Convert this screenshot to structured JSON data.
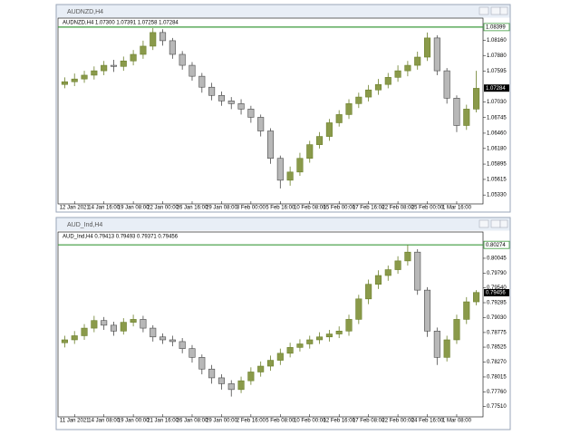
{
  "chart_data": [
    {
      "type": "candlestick",
      "window_title": "AUDNZD,H4",
      "info": "AUDNZD,H4 1.07300 1.07391 1.07258 1.07284",
      "categories": [
        null,
        "12 Jan 2021",
        null,
        null,
        "14 Jan 16:00",
        null,
        null,
        "19 Jan 08:00",
        null,
        null,
        "22 Jan 00:00",
        null,
        null,
        "26 Jan 16:00",
        null,
        null,
        "29 Jan 08:00",
        null,
        null,
        "3 Feb 00:00",
        null,
        null,
        "5 Feb 16:00",
        null,
        null,
        "10 Feb 08:00",
        null,
        null,
        "15 Feb 00:00",
        null,
        null,
        "17 Feb 16:00",
        null,
        null,
        "22 Feb 08:00",
        null,
        null,
        "25 Feb 00:00",
        null,
        null,
        "1 Mar 16:00",
        null,
        null
      ],
      "open": [
        1.0735,
        1.074,
        1.0745,
        1.0752,
        1.076,
        1.077,
        1.0768,
        1.0778,
        1.079,
        1.0805,
        1.083,
        1.0815,
        1.079,
        1.077,
        1.075,
        1.073,
        1.0715,
        1.0705,
        1.07,
        1.069,
        1.0675,
        1.065,
        1.06,
        1.056,
        1.0575,
        1.06,
        1.0625,
        1.064,
        1.0665,
        1.068,
        1.07,
        1.0712,
        1.0725,
        1.0735,
        1.0748,
        1.076,
        1.077,
        1.0785,
        1.082,
        1.076,
        1.071,
        1.066,
        1.069
      ],
      "high": [
        1.0748,
        1.0755,
        1.076,
        1.0768,
        1.0778,
        1.078,
        1.0786,
        1.0798,
        1.0815,
        1.0838,
        1.0836,
        1.082,
        1.0796,
        1.0776,
        1.0756,
        1.0738,
        1.0722,
        1.0712,
        1.0708,
        1.0696,
        1.068,
        1.0655,
        1.0605,
        1.0585,
        1.061,
        1.0632,
        1.0648,
        1.0672,
        1.0688,
        1.0708,
        1.072,
        1.0734,
        1.0745,
        1.0756,
        1.077,
        1.0778,
        1.0795,
        1.083,
        1.0825,
        1.0765,
        1.0715,
        1.0698,
        1.076
      ],
      "low": [
        1.0728,
        1.0732,
        1.0738,
        1.0744,
        1.0752,
        1.0758,
        1.076,
        1.077,
        1.0782,
        1.0798,
        1.0806,
        1.0782,
        1.0762,
        1.0742,
        1.072,
        1.0706,
        1.0696,
        1.069,
        1.068,
        1.0665,
        1.064,
        1.059,
        1.0545,
        1.055,
        1.0568,
        1.0592,
        1.0618,
        1.0632,
        1.0658,
        1.0672,
        1.0692,
        1.0704,
        1.0716,
        1.0728,
        1.074,
        1.075,
        1.0762,
        1.0778,
        1.0752,
        1.07,
        1.0648,
        1.0652,
        1.0684
      ],
      "close": [
        1.074,
        1.0745,
        1.0752,
        1.076,
        1.077,
        1.0768,
        1.0778,
        1.079,
        1.0805,
        1.083,
        1.0815,
        1.079,
        1.077,
        1.075,
        1.073,
        1.0715,
        1.0705,
        1.07,
        1.069,
        1.0675,
        1.065,
        1.06,
        1.056,
        1.0575,
        1.06,
        1.0625,
        1.064,
        1.0665,
        1.068,
        1.07,
        1.0712,
        1.0725,
        1.0735,
        1.0748,
        1.076,
        1.077,
        1.0785,
        1.082,
        1.076,
        1.071,
        1.066,
        1.069,
        1.0728
      ],
      "ylim": [
        1.0525,
        1.0843
      ],
      "yticks": [
        {
          "value": 1.0816,
          "label": "1.08160"
        },
        {
          "value": 1.0788,
          "label": "1.07880"
        },
        1.07595,
        {
          "value": 1.0703,
          "label": "1.07030"
        },
        1.06745,
        {
          "value": 1.0646,
          "label": "1.06460"
        },
        {
          "value": 1.0618,
          "label": "1.06180"
        },
        1.05895,
        1.05615,
        {
          "value": 1.0533,
          "label": "1.05330"
        }
      ],
      "level": 1.08399,
      "last_price": 1.07284,
      "bull_color": "#6b7f2a",
      "bear_color": "#4a4a4a",
      "level_color": "#3c9a3c"
    },
    {
      "type": "candlestick",
      "window_title": "AUD_Ind,H4",
      "info": "AUD_Ind,H4 0.79413 0.79493 0.79371 0.79456",
      "categories": [
        null,
        "11 Jan 2021",
        null,
        null,
        "14 Jan 08:00",
        null,
        null,
        "19 Jan 00:00",
        null,
        null,
        "21 Jan 16:00",
        null,
        null,
        "26 Jan 08:00",
        null,
        null,
        "29 Jan 00:00",
        null,
        null,
        "2 Feb 16:00",
        null,
        null,
        "5 Feb 08:00",
        null,
        null,
        "10 Feb 00:00",
        null,
        null,
        "12 Feb 16:00",
        null,
        null,
        "17 Feb 08:00",
        null,
        null,
        "22 Feb 00:00",
        null,
        null,
        "24 Feb 16:00",
        null,
        null,
        "1 Mar 08:00",
        null,
        null
      ],
      "open": [
        0.786,
        0.7865,
        0.7872,
        0.7885,
        0.7898,
        0.789,
        0.788,
        0.7895,
        0.79,
        0.7885,
        0.787,
        0.7865,
        0.7862,
        0.785,
        0.7835,
        0.7815,
        0.78,
        0.779,
        0.778,
        0.7795,
        0.781,
        0.782,
        0.783,
        0.7842,
        0.7852,
        0.7858,
        0.7865,
        0.787,
        0.7875,
        0.788,
        0.79,
        0.7935,
        0.796,
        0.7975,
        0.7985,
        0.8,
        0.8015,
        0.795,
        0.788,
        0.7835,
        0.7865,
        0.79,
        0.793
      ],
      "high": [
        0.7872,
        0.788,
        0.7892,
        0.7906,
        0.7904,
        0.7896,
        0.7902,
        0.7908,
        0.7906,
        0.789,
        0.7876,
        0.7872,
        0.7868,
        0.7856,
        0.784,
        0.7822,
        0.7806,
        0.7796,
        0.7802,
        0.7818,
        0.7828,
        0.7838,
        0.785,
        0.786,
        0.7866,
        0.7872,
        0.7878,
        0.7882,
        0.7888,
        0.7908,
        0.7942,
        0.7968,
        0.7984,
        0.7992,
        0.8008,
        0.8027,
        0.802,
        0.7955,
        0.7886,
        0.7872,
        0.7908,
        0.7938,
        0.795
      ],
      "low": [
        0.7852,
        0.7858,
        0.7865,
        0.7878,
        0.7882,
        0.7872,
        0.7874,
        0.7888,
        0.7878,
        0.7862,
        0.7858,
        0.7854,
        0.7842,
        0.7826,
        0.7806,
        0.779,
        0.778,
        0.7768,
        0.7774,
        0.7788,
        0.7802,
        0.7812,
        0.7822,
        0.7835,
        0.7845,
        0.785,
        0.7858,
        0.7862,
        0.7868,
        0.7872,
        0.7892,
        0.7926,
        0.7952,
        0.7966,
        0.7978,
        0.7992,
        0.7942,
        0.787,
        0.7822,
        0.7828,
        0.7858,
        0.7892,
        0.7924
      ],
      "close": [
        0.7865,
        0.7872,
        0.7885,
        0.7898,
        0.789,
        0.788,
        0.7895,
        0.79,
        0.7885,
        0.787,
        0.7865,
        0.7862,
        0.785,
        0.7835,
        0.7815,
        0.78,
        0.779,
        0.778,
        0.7795,
        0.781,
        0.782,
        0.783,
        0.7842,
        0.7852,
        0.7858,
        0.7865,
        0.787,
        0.7875,
        0.788,
        0.79,
        0.7935,
        0.796,
        0.7975,
        0.7985,
        0.8,
        0.8015,
        0.795,
        0.788,
        0.7835,
        0.7865,
        0.79,
        0.793,
        0.7946
      ],
      "ylim": [
        0.7741,
        0.8037
      ],
      "yticks": [
        0.80045,
        {
          "value": 0.7979,
          "label": "0.79790"
        },
        {
          "value": 0.7954,
          "label": "0.79540"
        },
        0.79285,
        {
          "value": 0.7903,
          "label": "0.79030"
        },
        0.78775,
        0.78525,
        {
          "value": 0.7827,
          "label": "0.78270"
        },
        0.78015,
        {
          "value": 0.7776,
          "label": "0.77760"
        },
        {
          "value": 0.7751,
          "label": "0.77510"
        }
      ],
      "level": 0.80274,
      "last_price": 0.79456,
      "bull_color": "#6b7f2a",
      "bear_color": "#4a4a4a",
      "level_color": "#3c9a3c"
    }
  ]
}
